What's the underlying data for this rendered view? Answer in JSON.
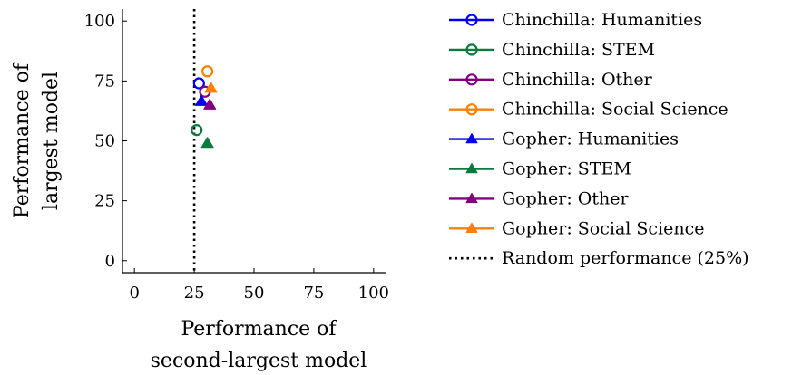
{
  "chart_data": {
    "type": "scatter",
    "title": "",
    "xlabel": [
      "Performance of",
      "second-largest model"
    ],
    "ylabel": [
      "Performance of",
      "largest model"
    ],
    "xlim": [
      -5,
      105
    ],
    "ylim": [
      -5,
      105
    ],
    "xticks": [
      "0",
      "25",
      "50",
      "75",
      "100"
    ],
    "yticks": [
      "0",
      "25",
      "50",
      "75",
      "100"
    ],
    "xtick_values": [
      0,
      25,
      50,
      75,
      100
    ],
    "ytick_values": [
      0,
      25,
      50,
      75,
      100
    ],
    "grid": false,
    "legend_position": "outside-right",
    "series": [
      {
        "name": "Chinchilla: Humanities",
        "marker": "circle",
        "color": "#0000ee",
        "points": [
          [
            27,
            74
          ]
        ]
      },
      {
        "name": "Chinchilla: STEM",
        "marker": "circle",
        "color": "#0a7a3e",
        "points": [
          [
            26,
            54.5
          ]
        ]
      },
      {
        "name": "Chinchilla: Other",
        "marker": "circle",
        "color": "#800080",
        "points": [
          [
            29.5,
            70.5
          ]
        ]
      },
      {
        "name": "Chinchilla: Social Science",
        "marker": "circle",
        "color": "#ff8000",
        "points": [
          [
            30.5,
            79
          ]
        ]
      },
      {
        "name": "Gopher: Humanities",
        "marker": "triangle",
        "color": "#0000ee",
        "points": [
          [
            28,
            66.5
          ]
        ]
      },
      {
        "name": "Gopher: STEM",
        "marker": "triangle",
        "color": "#0a7a3e",
        "points": [
          [
            30.5,
            49
          ]
        ]
      },
      {
        "name": "Gopher: Other",
        "marker": "triangle",
        "color": "#800080",
        "points": [
          [
            31.5,
            65
          ]
        ]
      },
      {
        "name": "Gopher: Social Science",
        "marker": "triangle",
        "color": "#ff8000",
        "points": [
          [
            32,
            72
          ]
        ]
      }
    ],
    "reference_line": {
      "name": "Random performance (25%)",
      "x": 25,
      "style": "dotted",
      "color": "#000000"
    }
  }
}
